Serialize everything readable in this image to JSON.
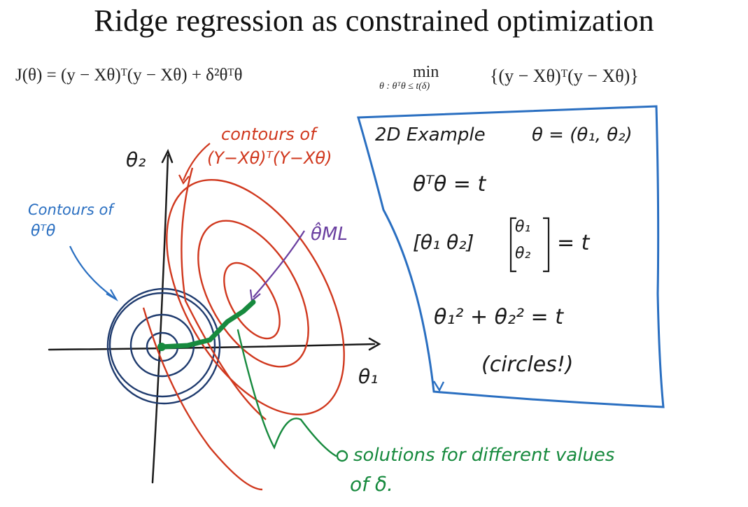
{
  "title": "Ridge regression as constrained optimization",
  "equations": {
    "objective": "J(θ) = (y − Xθ)ᵀ(y − Xθ) + δ²θᵀθ",
    "min_word": "min",
    "constraint": "θ : θᵀθ ≤ t(δ)",
    "min_body": "{(y − Xθ)ᵀ(y − Xθ)}"
  },
  "annotations": {
    "red_contours_line1": "contours of",
    "red_contours_line2": "(Y−Xθ)ᵀ(Y−Xθ)",
    "blue_contours_line1": "Contours of",
    "blue_contours_line2": "θᵀθ",
    "theta_ml": "θ̂ML",
    "axis_y": "θ₂",
    "axis_x": "θ₁",
    "green_line1": "solutions for different values",
    "green_line2": "of δ."
  },
  "example_box": {
    "heading": "2D Example",
    "vector_def": "θ = (θ₁, θ₂)",
    "line1": "θᵀθ = t",
    "line2_row": "[θ₁  θ₂]",
    "line2_col_top": "θ₁",
    "line2_col_bottom": "θ₂",
    "line2_rhs": "= t",
    "line3": "θ₁² + θ₂² = t",
    "line4": "(circles!)"
  },
  "colors": {
    "red": "#d0381e",
    "blue": "#2a6fc1",
    "navy": "#1f3b6e",
    "green": "#178a3e",
    "purple": "#6a3fa0"
  }
}
